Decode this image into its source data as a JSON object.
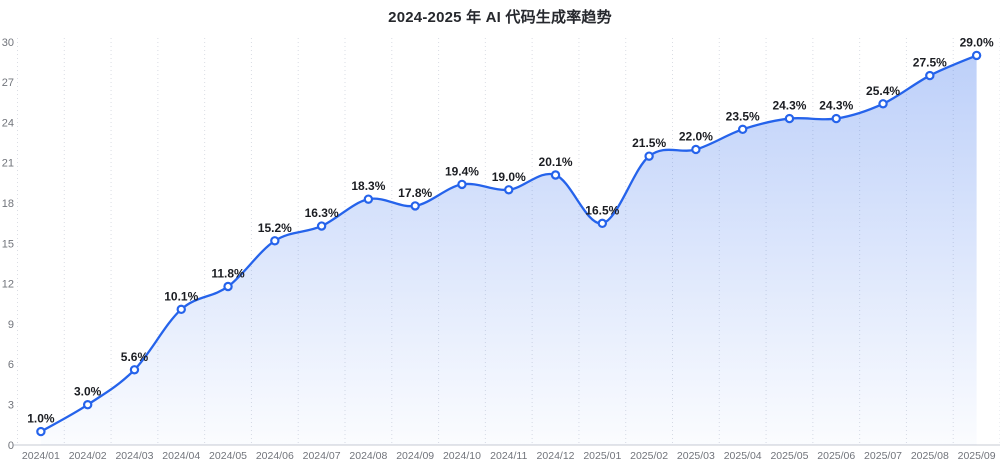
{
  "chart_data": {
    "type": "area",
    "title": "2024-2025 年 AI 代码生成率趋势",
    "categories": [
      "2024/01",
      "2024/02",
      "2024/03",
      "2024/04",
      "2024/05",
      "2024/06",
      "2024/07",
      "2024/08",
      "2024/09",
      "2024/10",
      "2024/11",
      "2024/12",
      "2025/01",
      "2025/02",
      "2025/03",
      "2025/04",
      "2025/05",
      "2025/06",
      "2025/07",
      "2025/08",
      "2025/09"
    ],
    "values": [
      1.0,
      3.0,
      5.6,
      10.1,
      11.8,
      15.2,
      16.3,
      18.3,
      17.8,
      19.4,
      19.0,
      20.1,
      16.5,
      21.5,
      22.0,
      23.5,
      24.3,
      24.3,
      25.4,
      27.5,
      29.0
    ],
    "point_labels": [
      "1.0%",
      "3.0%",
      "5.6%",
      "10.1%",
      "11.8%",
      "15.2%",
      "16.3%",
      "18.3%",
      "17.8%",
      "19.4%",
      "19.0%",
      "20.1%",
      "16.5%",
      "21.5%",
      "22.0%",
      "23.5%",
      "24.3%",
      "24.3%",
      "25.4%",
      "27.5%",
      "29.0%"
    ],
    "xlabel": "",
    "ylabel": "",
    "ylim": [
      0,
      30
    ],
    "y_ticks": [
      0,
      3,
      6,
      9,
      12,
      15,
      18,
      21,
      24,
      27,
      30
    ],
    "grid": "vertical-dotted",
    "legend": "none",
    "smooth": true,
    "colors": {
      "line": "#2563eb",
      "marker_fill": "#ffffff",
      "area_top": "rgba(37, 99, 235, 0.30)",
      "area_bottom": "rgba(37, 99, 235, 0.02)",
      "grid": "#dadde4",
      "axis_line": "#d2d5dc",
      "tick_label": "#71747b",
      "data_label": "#1b1d22",
      "title": "#26282d"
    }
  }
}
